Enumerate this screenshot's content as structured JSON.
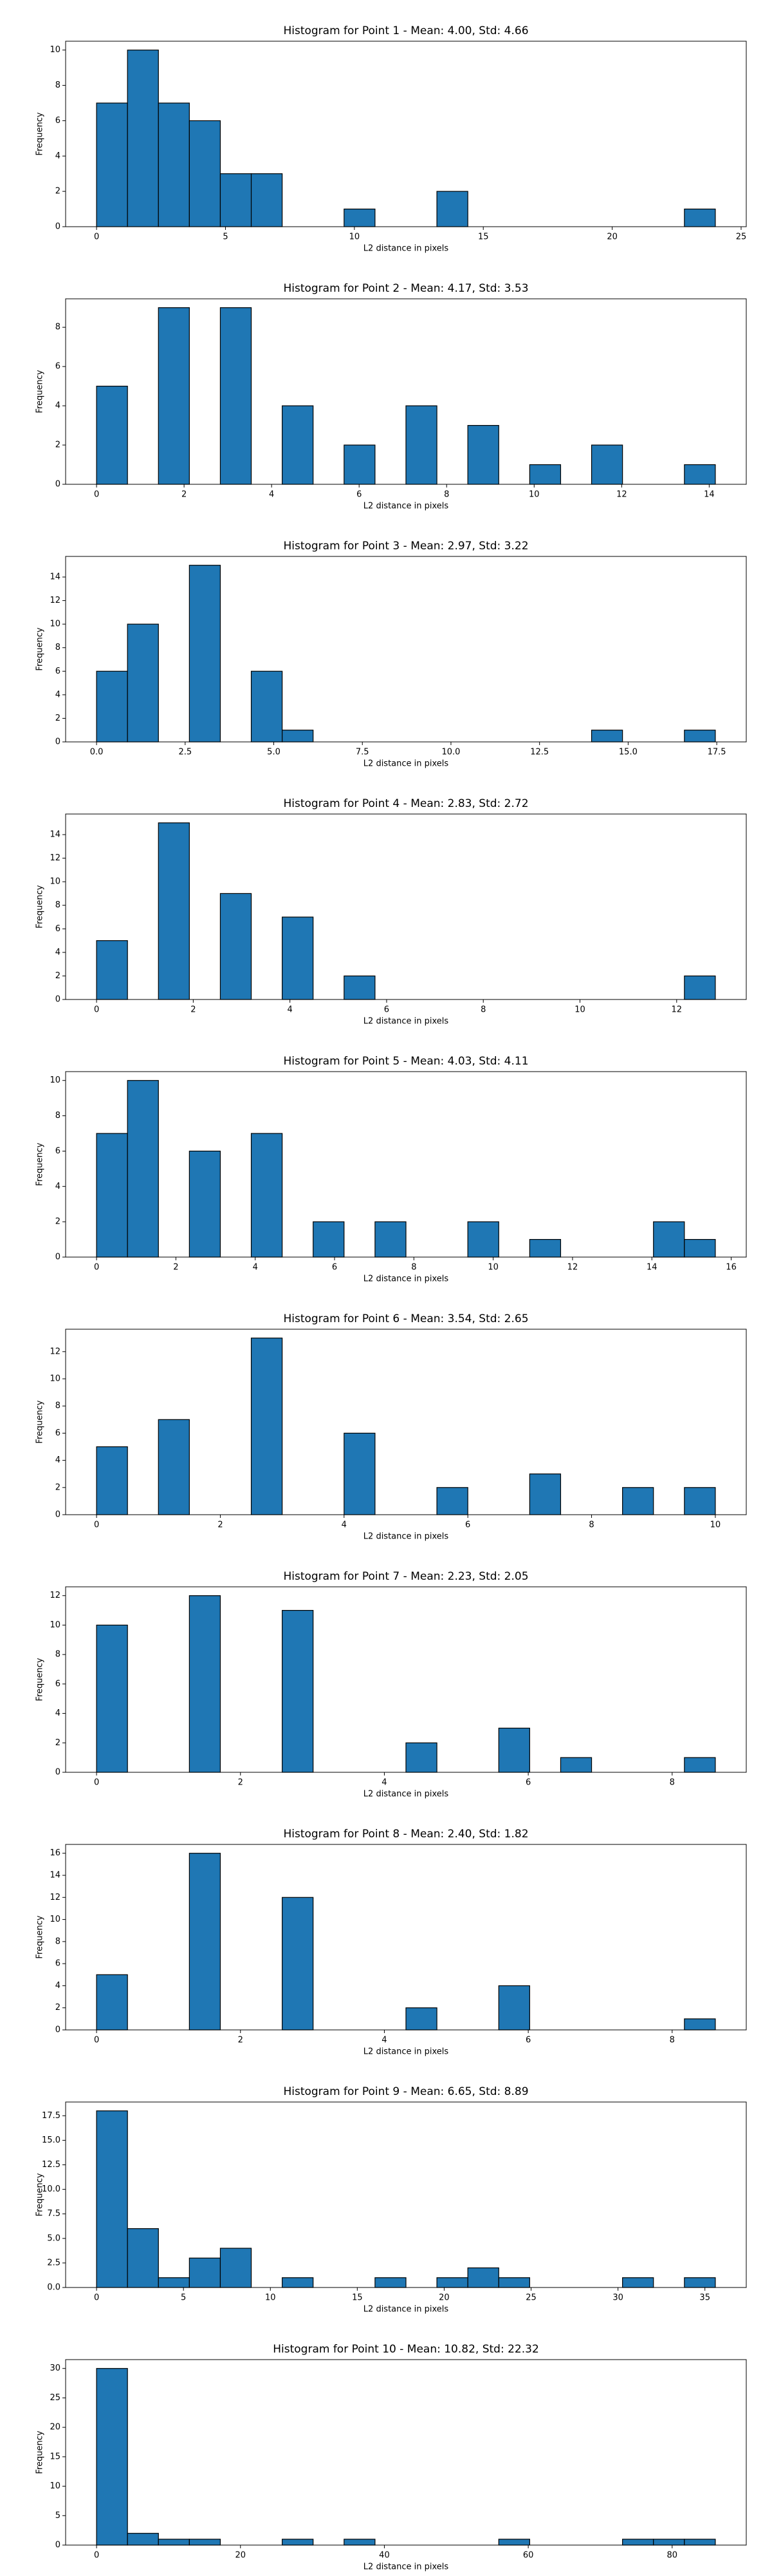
{
  "chart_data": [
    {
      "type": "histogram",
      "title": "Histogram for Point 1 - Mean: 4.00, Std: 4.66",
      "xlabel": "L2 distance in pixels",
      "ylabel": "Frequency",
      "color": "#1f77b4",
      "edgecolor": "#000000",
      "bins": [
        0,
        1.2,
        2.4,
        3.6,
        4.8,
        6,
        7.2,
        8.4,
        9.6,
        10.8,
        12,
        13.2,
        14.4,
        15.6,
        16.8,
        18,
        19.2,
        20.4,
        21.6,
        22.8,
        24
      ],
      "values": [
        7,
        10,
        7,
        6,
        3,
        3,
        0,
        0,
        1,
        0,
        0,
        2,
        0,
        0,
        0,
        0,
        0,
        0,
        0,
        1
      ],
      "xlim": [
        -1.2,
        25.2
      ],
      "xticks": [
        0,
        5,
        10,
        15,
        20,
        25
      ],
      "ylim": [
        0,
        10.5
      ],
      "yticks": [
        0,
        2,
        4,
        6,
        8,
        10
      ]
    },
    {
      "type": "histogram",
      "title": "Histogram for Point 2 - Mean: 4.17, Std: 3.53",
      "xlabel": "L2 distance in pixels",
      "ylabel": "Frequency",
      "color": "#1f77b4",
      "edgecolor": "#000000",
      "bins": [
        0,
        0.707,
        1.414,
        2.121,
        2.828,
        3.535,
        4.242,
        4.949,
        5.656,
        6.363,
        7.07,
        7.777,
        8.484,
        9.191,
        9.898,
        10.605,
        11.312,
        12.019,
        12.726,
        13.433,
        14.14
      ],
      "values": [
        5,
        0,
        9,
        0,
        9,
        0,
        4,
        0,
        2,
        0,
        4,
        0,
        3,
        0,
        1,
        0,
        2,
        0,
        0,
        1
      ],
      "xlim": [
        -0.707,
        14.847
      ],
      "xticks": [
        0,
        2,
        4,
        6,
        8,
        10,
        12,
        14
      ],
      "ylim": [
        0,
        9.45
      ],
      "yticks": [
        0,
        2,
        4,
        6,
        8
      ]
    },
    {
      "type": "histogram",
      "title": "Histogram for Point 3 - Mean: 2.97, Std: 3.22",
      "xlabel": "L2 distance in pixels",
      "ylabel": "Frequency",
      "color": "#1f77b4",
      "edgecolor": "#000000",
      "bins": [
        0,
        0.873,
        1.746,
        2.619,
        3.492,
        4.365,
        5.238,
        6.111,
        6.984,
        7.857,
        8.73,
        9.603,
        10.476,
        11.349,
        12.222,
        13.095,
        13.968,
        14.841,
        15.714,
        16.587,
        17.46
      ],
      "values": [
        6,
        10,
        0,
        15,
        0,
        6,
        1,
        0,
        0,
        0,
        0,
        0,
        0,
        0,
        0,
        0,
        1,
        0,
        0,
        1
      ],
      "xlim": [
        -0.873,
        18.333
      ],
      "xticks": [
        {
          "value": 0,
          "label": "0.0"
        },
        {
          "value": 2.5,
          "label": "2.5"
        },
        {
          "value": 5,
          "label": "5.0"
        },
        {
          "value": 7.5,
          "label": "7.5"
        },
        {
          "value": 10,
          "label": "10.0"
        },
        {
          "value": 12.5,
          "label": "12.5"
        },
        {
          "value": 15,
          "label": "15.0"
        },
        {
          "value": 17.5,
          "label": "17.5"
        }
      ],
      "ylim": [
        0,
        15.75
      ],
      "yticks": [
        0,
        2,
        4,
        6,
        8,
        10,
        12,
        14
      ]
    },
    {
      "type": "histogram",
      "title": "Histogram for Point 4 - Mean: 2.83, Std: 2.72",
      "xlabel": "L2 distance in pixels",
      "ylabel": "Frequency",
      "color": "#1f77b4",
      "edgecolor": "#000000",
      "bins": [
        0,
        0.64,
        1.28,
        1.92,
        2.56,
        3.2,
        3.84,
        4.48,
        5.12,
        5.76,
        6.4,
        7.04,
        7.68,
        8.32,
        8.96,
        9.6,
        10.24,
        10.88,
        11.52,
        12.16,
        12.8
      ],
      "values": [
        5,
        0,
        15,
        0,
        9,
        0,
        7,
        0,
        2,
        0,
        0,
        0,
        0,
        0,
        0,
        0,
        0,
        0,
        0,
        2
      ],
      "xlim": [
        -0.64,
        13.44
      ],
      "xticks": [
        0,
        2,
        4,
        6,
        8,
        10,
        12
      ],
      "ylim": [
        0,
        15.75
      ],
      "yticks": [
        0,
        2,
        4,
        6,
        8,
        10,
        12,
        14
      ]
    },
    {
      "type": "histogram",
      "title": "Histogram for Point 5 - Mean: 4.03, Std: 4.11",
      "xlabel": "L2 distance in pixels",
      "ylabel": "Frequency",
      "color": "#1f77b4",
      "edgecolor": "#000000",
      "bins": [
        0,
        0.78,
        1.56,
        2.34,
        3.12,
        3.9,
        4.68,
        5.46,
        6.24,
        7.02,
        7.8,
        8.58,
        9.36,
        10.14,
        10.92,
        11.7,
        12.48,
        13.26,
        14.04,
        14.82,
        15.6
      ],
      "values": [
        7,
        10,
        0,
        6,
        0,
        7,
        0,
        2,
        0,
        2,
        0,
        0,
        2,
        0,
        1,
        0,
        0,
        0,
        2,
        1
      ],
      "xlim": [
        -0.78,
        16.38
      ],
      "xticks": [
        0,
        2,
        4,
        6,
        8,
        10,
        12,
        14,
        16
      ],
      "ylim": [
        0,
        10.5
      ],
      "yticks": [
        0,
        2,
        4,
        6,
        8,
        10
      ]
    },
    {
      "type": "histogram",
      "title": "Histogram for Point 6 - Mean: 3.54, Std: 2.65",
      "xlabel": "L2 distance in pixels",
      "ylabel": "Frequency",
      "color": "#1f77b4",
      "edgecolor": "#000000",
      "bins": [
        0,
        0.5,
        1,
        1.5,
        2,
        2.5,
        3,
        3.5,
        4,
        4.5,
        5,
        5.5,
        6,
        6.5,
        7,
        7.5,
        8,
        8.5,
        9,
        9.5,
        10
      ],
      "values": [
        5,
        0,
        7,
        0,
        0,
        13,
        0,
        0,
        6,
        0,
        0,
        2,
        0,
        0,
        3,
        0,
        0,
        2,
        0,
        2
      ],
      "xlim": [
        -0.5,
        10.5
      ],
      "xticks": [
        0,
        2,
        4,
        6,
        8,
        10
      ],
      "ylim": [
        0,
        13.65
      ],
      "yticks": [
        0,
        2,
        4,
        6,
        8,
        10,
        12
      ]
    },
    {
      "type": "histogram",
      "title": "Histogram for Point 7 - Mean: 2.23, Std: 2.05",
      "xlabel": "L2 distance in pixels",
      "ylabel": "Frequency",
      "color": "#1f77b4",
      "edgecolor": "#000000",
      "bins": [
        0,
        0.43,
        0.86,
        1.29,
        1.72,
        2.15,
        2.58,
        3.01,
        3.44,
        3.87,
        4.3,
        4.73,
        5.16,
        5.59,
        6.02,
        6.45,
        6.88,
        7.31,
        7.74,
        8.17,
        8.6
      ],
      "values": [
        10,
        0,
        0,
        12,
        0,
        0,
        11,
        0,
        0,
        0,
        2,
        0,
        0,
        3,
        0,
        1,
        0,
        0,
        0,
        1
      ],
      "xlim": [
        -0.43,
        9.03
      ],
      "xticks": [
        0,
        2,
        4,
        6,
        8
      ],
      "ylim": [
        0,
        12.6
      ],
      "yticks": [
        0,
        2,
        4,
        6,
        8,
        10,
        12
      ]
    },
    {
      "type": "histogram",
      "title": "Histogram for Point 8 - Mean: 2.40, Std: 1.82",
      "xlabel": "L2 distance in pixels",
      "ylabel": "Frequency",
      "color": "#1f77b4",
      "edgecolor": "#000000",
      "bins": [
        0,
        0.43,
        0.86,
        1.29,
        1.72,
        2.15,
        2.58,
        3.01,
        3.44,
        3.87,
        4.3,
        4.73,
        5.16,
        5.59,
        6.02,
        6.45,
        6.88,
        7.31,
        7.74,
        8.17,
        8.6
      ],
      "values": [
        5,
        0,
        0,
        16,
        0,
        0,
        12,
        0,
        0,
        0,
        2,
        0,
        0,
        4,
        0,
        0,
        0,
        0,
        0,
        1
      ],
      "xlim": [
        -0.43,
        9.03
      ],
      "xticks": [
        0,
        2,
        4,
        6,
        8
      ],
      "ylim": [
        0,
        16.8
      ],
      "yticks": [
        0,
        2,
        4,
        6,
        8,
        10,
        12,
        14,
        16
      ]
    },
    {
      "type": "histogram",
      "title": "Histogram for Point 9 - Mean: 6.65, Std: 8.89",
      "xlabel": "L2 distance in pixels",
      "ylabel": "Frequency",
      "color": "#1f77b4",
      "edgecolor": "#000000",
      "bins": [
        0,
        1.78,
        3.56,
        5.34,
        7.12,
        8.9,
        10.68,
        12.46,
        14.24,
        16.02,
        17.8,
        19.58,
        21.36,
        23.14,
        24.92,
        26.7,
        28.48,
        30.26,
        32.04,
        33.82,
        35.6
      ],
      "values": [
        18,
        6,
        1,
        3,
        4,
        0,
        1,
        0,
        0,
        1,
        0,
        1,
        2,
        1,
        0,
        0,
        0,
        1,
        0,
        1
      ],
      "xlim": [
        -1.78,
        37.38
      ],
      "xticks": [
        0,
        5,
        10,
        15,
        20,
        25,
        30,
        35
      ],
      "ylim": [
        0,
        18.9
      ],
      "yticks": [
        {
          "value": 0,
          "label": "0.0"
        },
        {
          "value": 2.5,
          "label": "2.5"
        },
        {
          "value": 5,
          "label": "5.0"
        },
        {
          "value": 7.5,
          "label": "7.5"
        },
        {
          "value": 10,
          "label": "10.0"
        },
        {
          "value": 12.5,
          "label": "12.5"
        },
        {
          "value": 15,
          "label": "15.0"
        },
        {
          "value": 17.5,
          "label": "17.5"
        }
      ]
    },
    {
      "type": "histogram",
      "title": "Histogram for Point 10 - Mean: 10.82, Std: 22.32",
      "xlabel": "L2 distance in pixels",
      "ylabel": "Frequency",
      "color": "#1f77b4",
      "edgecolor": "#000000",
      "bins": [
        0,
        4.3,
        8.6,
        12.9,
        17.2,
        21.5,
        25.8,
        30.1,
        34.4,
        38.7,
        43,
        47.3,
        51.6,
        55.9,
        60.2,
        64.5,
        68.8,
        73.1,
        77.4,
        81.7,
        86
      ],
      "values": [
        30,
        2,
        1,
        1,
        0,
        0,
        1,
        0,
        1,
        0,
        0,
        0,
        0,
        1,
        0,
        0,
        0,
        1,
        1,
        1
      ],
      "xlim": [
        -4.3,
        90.3
      ],
      "xticks": [
        0,
        20,
        40,
        60,
        80
      ],
      "ylim": [
        0,
        31.5
      ],
      "yticks": [
        0,
        5,
        10,
        15,
        20,
        25,
        30
      ]
    }
  ]
}
